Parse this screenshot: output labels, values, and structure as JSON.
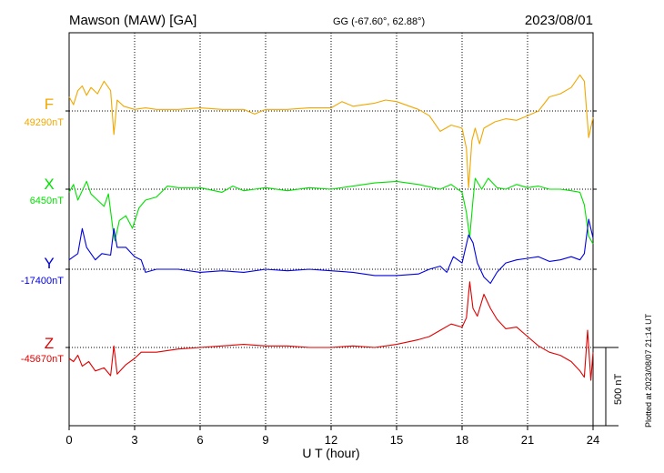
{
  "header": {
    "station": "Mawson (MAW)  [GA]",
    "coords": "GG (-67.60°,  62.88°)",
    "date": "2023/08/01"
  },
  "plotted_note": "Plotted at 2023/08/07 21:14 UT",
  "scale_bar_label": "500 nT",
  "chart_data": {
    "type": "line",
    "title": "Mawson (MAW)  [GA]",
    "xlabel": "U T (hour)",
    "ylabel": "",
    "xlim": [
      0,
      24
    ],
    "xticks": [
      0,
      3,
      6,
      9,
      12,
      15,
      18,
      21,
      24
    ],
    "grid": true,
    "scale_nT_per_bar": 500,
    "series": [
      {
        "name": "F",
        "baseline_label": "49290nT",
        "color": "#f0a800",
        "baseline_nT": 49290,
        "points": [
          [
            0,
            49380
          ],
          [
            0.2,
            49330
          ],
          [
            0.4,
            49420
          ],
          [
            0.6,
            49450
          ],
          [
            0.8,
            49390
          ],
          [
            1.0,
            49440
          ],
          [
            1.3,
            49400
          ],
          [
            1.6,
            49480
          ],
          [
            1.9,
            49420
          ],
          [
            2.05,
            49140
          ],
          [
            2.2,
            49360
          ],
          [
            2.5,
            49320
          ],
          [
            3.0,
            49300
          ],
          [
            3.5,
            49310
          ],
          [
            4.0,
            49300
          ],
          [
            5.0,
            49300
          ],
          [
            6.0,
            49310
          ],
          [
            7.0,
            49300
          ],
          [
            8.0,
            49300
          ],
          [
            8.5,
            49270
          ],
          [
            9.0,
            49300
          ],
          [
            10.0,
            49300
          ],
          [
            11.0,
            49310
          ],
          [
            12.0,
            49310
          ],
          [
            12.5,
            49350
          ],
          [
            13.0,
            49320
          ],
          [
            14.0,
            49340
          ],
          [
            14.5,
            49360
          ],
          [
            15.0,
            49350
          ],
          [
            16.0,
            49300
          ],
          [
            16.5,
            49260
          ],
          [
            17.0,
            49160
          ],
          [
            17.5,
            49200
          ],
          [
            18.0,
            49180
          ],
          [
            18.2,
            49050
          ],
          [
            18.3,
            48800
          ],
          [
            18.45,
            49100
          ],
          [
            18.6,
            49180
          ],
          [
            18.8,
            49080
          ],
          [
            19.0,
            49180
          ],
          [
            19.5,
            49220
          ],
          [
            20.0,
            49240
          ],
          [
            20.5,
            49230
          ],
          [
            21.0,
            49260
          ],
          [
            21.5,
            49290
          ],
          [
            22.0,
            49380
          ],
          [
            22.5,
            49400
          ],
          [
            23.0,
            49440
          ],
          [
            23.4,
            49520
          ],
          [
            23.6,
            49480
          ],
          [
            23.8,
            49120
          ],
          [
            24.0,
            49250
          ]
        ]
      },
      {
        "name": "X",
        "baseline_label": "6450nT",
        "color": "#00e000",
        "baseline_nT": 6450,
        "points": [
          [
            0,
            6430
          ],
          [
            0.2,
            6480
          ],
          [
            0.4,
            6380
          ],
          [
            0.6,
            6440
          ],
          [
            0.8,
            6500
          ],
          [
            1.0,
            6420
          ],
          [
            1.3,
            6380
          ],
          [
            1.6,
            6340
          ],
          [
            1.8,
            6420
          ],
          [
            2.0,
            6200
          ],
          [
            2.1,
            6120
          ],
          [
            2.3,
            6250
          ],
          [
            2.6,
            6280
          ],
          [
            2.9,
            6200
          ],
          [
            3.2,
            6330
          ],
          [
            3.5,
            6380
          ],
          [
            4.0,
            6400
          ],
          [
            4.5,
            6470
          ],
          [
            5.0,
            6460
          ],
          [
            6.0,
            6460
          ],
          [
            7.0,
            6430
          ],
          [
            7.5,
            6470
          ],
          [
            8.0,
            6440
          ],
          [
            8.5,
            6450
          ],
          [
            9.0,
            6460
          ],
          [
            10.0,
            6440
          ],
          [
            11.0,
            6460
          ],
          [
            12.0,
            6450
          ],
          [
            13.0,
            6470
          ],
          [
            14.0,
            6490
          ],
          [
            15.0,
            6500
          ],
          [
            16.0,
            6480
          ],
          [
            17.0,
            6450
          ],
          [
            17.5,
            6480
          ],
          [
            18.0,
            6430
          ],
          [
            18.2,
            6300
          ],
          [
            18.35,
            6140
          ],
          [
            18.5,
            6380
          ],
          [
            18.6,
            6520
          ],
          [
            18.9,
            6450
          ],
          [
            19.2,
            6520
          ],
          [
            19.6,
            6460
          ],
          [
            20.0,
            6450
          ],
          [
            20.5,
            6480
          ],
          [
            21.0,
            6460
          ],
          [
            21.5,
            6470
          ],
          [
            22.0,
            6450
          ],
          [
            22.5,
            6450
          ],
          [
            23.0,
            6440
          ],
          [
            23.4,
            6430
          ],
          [
            23.6,
            6350
          ],
          [
            23.8,
            6150
          ],
          [
            24.0,
            6100
          ]
        ]
      },
      {
        "name": "Y",
        "baseline_label": "-17400nT",
        "color": "#0000e0",
        "baseline_nT": -17400,
        "points": [
          [
            0,
            -17340
          ],
          [
            0.2,
            -17320
          ],
          [
            0.4,
            -17300
          ],
          [
            0.6,
            -17140
          ],
          [
            0.8,
            -17260
          ],
          [
            1.0,
            -17300
          ],
          [
            1.2,
            -17340
          ],
          [
            1.5,
            -17300
          ],
          [
            1.9,
            -17310
          ],
          [
            2.05,
            -17140
          ],
          [
            2.2,
            -17260
          ],
          [
            2.6,
            -17260
          ],
          [
            3.0,
            -17320
          ],
          [
            3.3,
            -17340
          ],
          [
            3.5,
            -17420
          ],
          [
            4.0,
            -17400
          ],
          [
            5.0,
            -17400
          ],
          [
            6.0,
            -17420
          ],
          [
            7.0,
            -17410
          ],
          [
            8.0,
            -17420
          ],
          [
            9.0,
            -17400
          ],
          [
            10.0,
            -17410
          ],
          [
            11.0,
            -17400
          ],
          [
            12.0,
            -17410
          ],
          [
            13.0,
            -17420
          ],
          [
            14.0,
            -17440
          ],
          [
            15.0,
            -17440
          ],
          [
            16.0,
            -17430
          ],
          [
            16.5,
            -17400
          ],
          [
            17.0,
            -17380
          ],
          [
            17.3,
            -17420
          ],
          [
            17.6,
            -17320
          ],
          [
            18.0,
            -17360
          ],
          [
            18.3,
            -17180
          ],
          [
            18.5,
            -17230
          ],
          [
            18.7,
            -17360
          ],
          [
            19.0,
            -17450
          ],
          [
            19.3,
            -17490
          ],
          [
            19.6,
            -17420
          ],
          [
            20.0,
            -17360
          ],
          [
            20.5,
            -17340
          ],
          [
            21.0,
            -17330
          ],
          [
            21.5,
            -17320
          ],
          [
            22.0,
            -17350
          ],
          [
            22.5,
            -17340
          ],
          [
            23.0,
            -17320
          ],
          [
            23.4,
            -17340
          ],
          [
            23.6,
            -17300
          ],
          [
            23.8,
            -17080
          ],
          [
            24.0,
            -17200
          ]
        ]
      },
      {
        "name": "Z",
        "baseline_label": "-45670nT",
        "color": "#e00000",
        "baseline_nT": -45670,
        "points": [
          [
            0,
            -45740
          ],
          [
            0.2,
            -45760
          ],
          [
            0.4,
            -45720
          ],
          [
            0.6,
            -45790
          ],
          [
            0.9,
            -45760
          ],
          [
            1.2,
            -45820
          ],
          [
            1.6,
            -45800
          ],
          [
            1.9,
            -45850
          ],
          [
            2.05,
            -45660
          ],
          [
            2.2,
            -45840
          ],
          [
            2.6,
            -45780
          ],
          [
            3.0,
            -45740
          ],
          [
            3.3,
            -45700
          ],
          [
            3.6,
            -45700
          ],
          [
            4.0,
            -45700
          ],
          [
            4.5,
            -45690
          ],
          [
            5.0,
            -45680
          ],
          [
            6.0,
            -45670
          ],
          [
            7.0,
            -45660
          ],
          [
            8.0,
            -45650
          ],
          [
            9.0,
            -45660
          ],
          [
            10.0,
            -45660
          ],
          [
            11.0,
            -45670
          ],
          [
            12.0,
            -45670
          ],
          [
            13.0,
            -45660
          ],
          [
            14.0,
            -45670
          ],
          [
            15.0,
            -45650
          ],
          [
            16.0,
            -45620
          ],
          [
            16.5,
            -45600
          ],
          [
            17.0,
            -45560
          ],
          [
            17.5,
            -45520
          ],
          [
            18.0,
            -45540
          ],
          [
            18.2,
            -45480
          ],
          [
            18.35,
            -45250
          ],
          [
            18.5,
            -45420
          ],
          [
            18.7,
            -45470
          ],
          [
            19.0,
            -45330
          ],
          [
            19.3,
            -45420
          ],
          [
            19.6,
            -45490
          ],
          [
            20.0,
            -45550
          ],
          [
            20.5,
            -45540
          ],
          [
            21.0,
            -45600
          ],
          [
            21.5,
            -45660
          ],
          [
            22.0,
            -45700
          ],
          [
            22.5,
            -45720
          ],
          [
            23.0,
            -45760
          ],
          [
            23.4,
            -45820
          ],
          [
            23.6,
            -45860
          ],
          [
            23.75,
            -45560
          ],
          [
            23.9,
            -45880
          ],
          [
            24.0,
            -45700
          ]
        ]
      }
    ]
  }
}
